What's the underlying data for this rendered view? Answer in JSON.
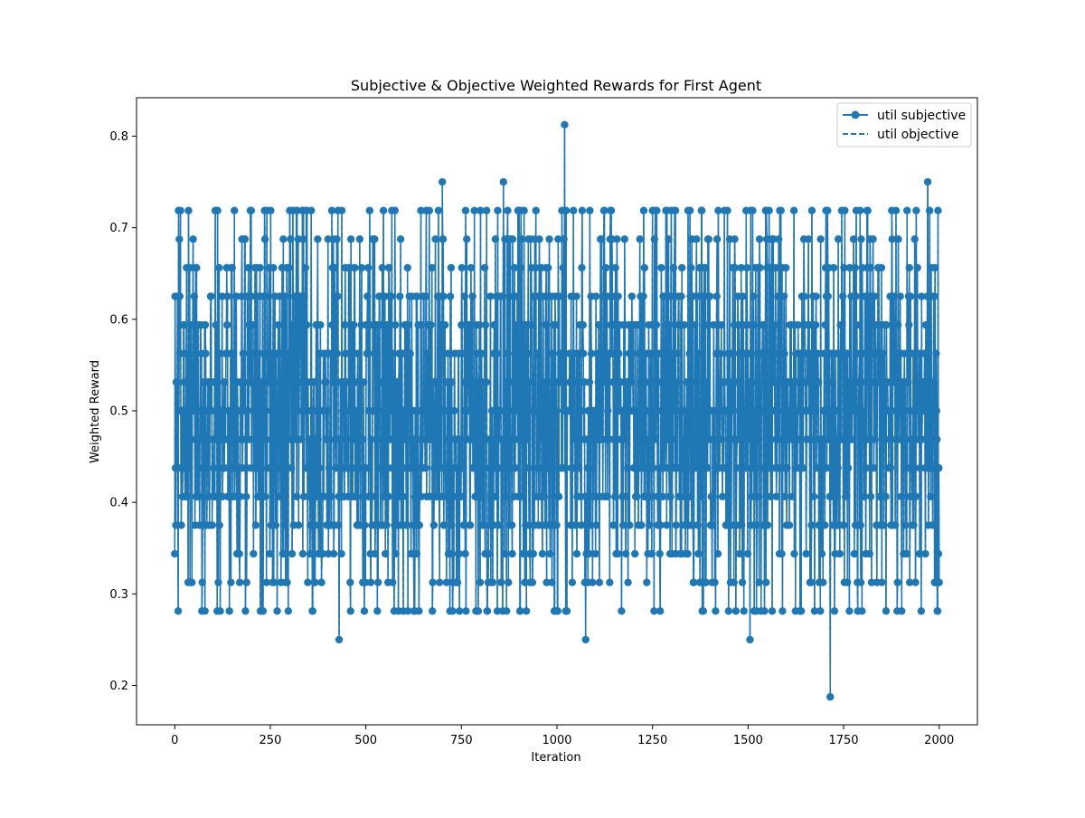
{
  "chart_data": {
    "type": "line",
    "title": "Subjective & Objective Weighted Rewards for First Agent",
    "xlabel": "Iteration",
    "ylabel": "Weighted Reward",
    "xlim": [
      -100,
      2100
    ],
    "ylim": [
      0.157,
      0.842
    ],
    "x_ticks": [
      0,
      250,
      500,
      750,
      1000,
      1250,
      1500,
      1750,
      2000
    ],
    "y_ticks": [
      0.2,
      0.3,
      0.4,
      0.5,
      0.6,
      0.7,
      0.8
    ],
    "grid": false,
    "legend_position": "top-right",
    "colors": {
      "series": "#1f77b4",
      "axes": "#000000",
      "background": "#ffffff"
    },
    "levels": [
      0.1875,
      0.25,
      0.28125,
      0.3125,
      0.34375,
      0.375,
      0.40625,
      0.4375,
      0.46875,
      0.5,
      0.53125,
      0.5625,
      0.59375,
      0.625,
      0.65625,
      0.6875,
      0.71875,
      0.75,
      0.8125
    ],
    "notable_points": [
      {
        "x": 0,
        "y": 0.34375
      },
      {
        "x": 12,
        "y": 0.6875
      },
      {
        "x": 40,
        "y": 0.3125
      },
      {
        "x": 200,
        "y": 0.71875
      },
      {
        "x": 320,
        "y": 0.71875
      },
      {
        "x": 360,
        "y": 0.28125
      },
      {
        "x": 430,
        "y": 0.25
      },
      {
        "x": 510,
        "y": 0.71875
      },
      {
        "x": 610,
        "y": 0.28125
      },
      {
        "x": 700,
        "y": 0.75
      },
      {
        "x": 745,
        "y": 0.28125
      },
      {
        "x": 860,
        "y": 0.75
      },
      {
        "x": 920,
        "y": 0.28125
      },
      {
        "x": 1020,
        "y": 0.8125
      },
      {
        "x": 1075,
        "y": 0.25
      },
      {
        "x": 1140,
        "y": 0.71875
      },
      {
        "x": 1250,
        "y": 0.71875
      },
      {
        "x": 1380,
        "y": 0.28125
      },
      {
        "x": 1505,
        "y": 0.25
      },
      {
        "x": 1715,
        "y": 0.1875
      },
      {
        "x": 1745,
        "y": 0.71875
      },
      {
        "x": 1765,
        "y": 0.28125
      },
      {
        "x": 1890,
        "y": 0.28125
      },
      {
        "x": 1970,
        "y": 0.75
      },
      {
        "x": 1995,
        "y": 0.28125
      },
      {
        "x": 2000,
        "y": 0.3125
      }
    ],
    "series": [
      {
        "name": "util subjective",
        "style": "solid",
        "marker": "circle",
        "iterations": 2001,
        "x_start": 0,
        "x_end": 2000,
        "mean": 0.5,
        "min": 0.1875,
        "max": 0.8125
      },
      {
        "name": "util objective",
        "style": "dashed",
        "marker": "none",
        "iterations": 2001,
        "x_start": 0,
        "x_end": 2000,
        "mean": 0.5,
        "min": 0.1875,
        "max": 0.8125
      }
    ]
  }
}
